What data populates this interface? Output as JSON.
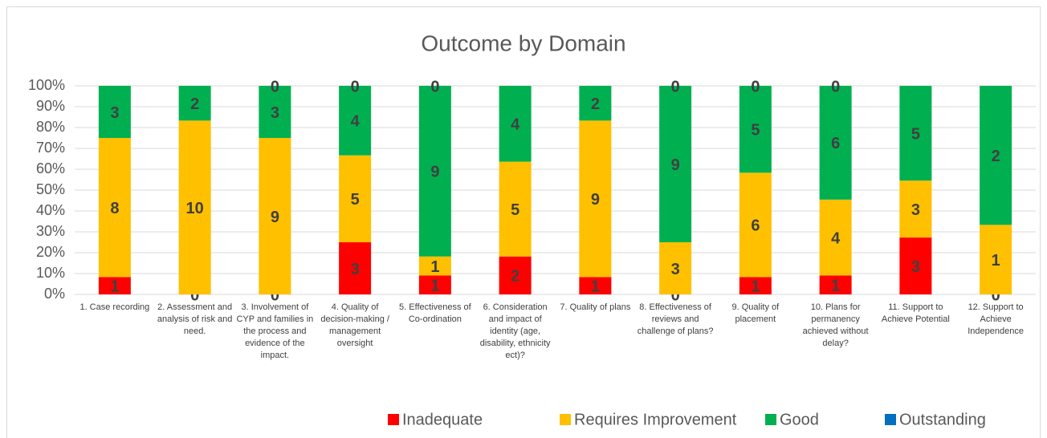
{
  "chart_data": {
    "type": "stacked_bar_100",
    "title": "Outcome by Domain",
    "categories": [
      "1. Case recording",
      "2. Assessment and analysis of risk and need.",
      "3.  Involvement of CYP and families in the process and evidence of the impact.",
      "4. Quality of decision-making / management oversight",
      "5. Effectiveness of Co-ordination",
      "6. Consideration and impact of identity (age, disability, ethnicity ect)?",
      "7. Quality of plans",
      "8. Effectiveness of reviews and challenge of plans?",
      "9. Quality of placement",
      "10. Plans for permanency achieved without delay?",
      "11. Support to Achieve Potential",
      "12. Support to Achieve Independence"
    ],
    "series": [
      {
        "name": "Inadequate",
        "color": "#ff0000",
        "values": [
          1,
          0,
          0,
          3,
          1,
          2,
          1,
          0,
          1,
          1,
          3,
          0
        ]
      },
      {
        "name": "Requires Improvement",
        "color": "#ffc000",
        "values": [
          8,
          10,
          9,
          5,
          1,
          5,
          9,
          3,
          6,
          4,
          3,
          1
        ]
      },
      {
        "name": "Good",
        "color": "#00b050",
        "values": [
          3,
          2,
          3,
          4,
          9,
          4,
          2,
          9,
          5,
          6,
          5,
          2
        ]
      },
      {
        "name": "Outstanding",
        "color": "#0070c0",
        "values": [
          null,
          null,
          0,
          0,
          0,
          null,
          null,
          0,
          0,
          0,
          null,
          null
        ]
      }
    ],
    "ylim": [
      0,
      100
    ],
    "yticks": [
      {
        "value": 0,
        "label": "0%"
      },
      {
        "value": 10,
        "label": "10%"
      },
      {
        "value": 20,
        "label": "20%"
      },
      {
        "value": 30,
        "label": "30%"
      },
      {
        "value": 40,
        "label": "40%"
      },
      {
        "value": 50,
        "label": "50%"
      },
      {
        "value": 60,
        "label": "60%"
      },
      {
        "value": 70,
        "label": "70%"
      },
      {
        "value": 80,
        "label": "80%"
      },
      {
        "value": 90,
        "label": "90%"
      },
      {
        "value": 100,
        "label": "100%"
      }
    ],
    "grid": true,
    "legend": "bottom"
  }
}
